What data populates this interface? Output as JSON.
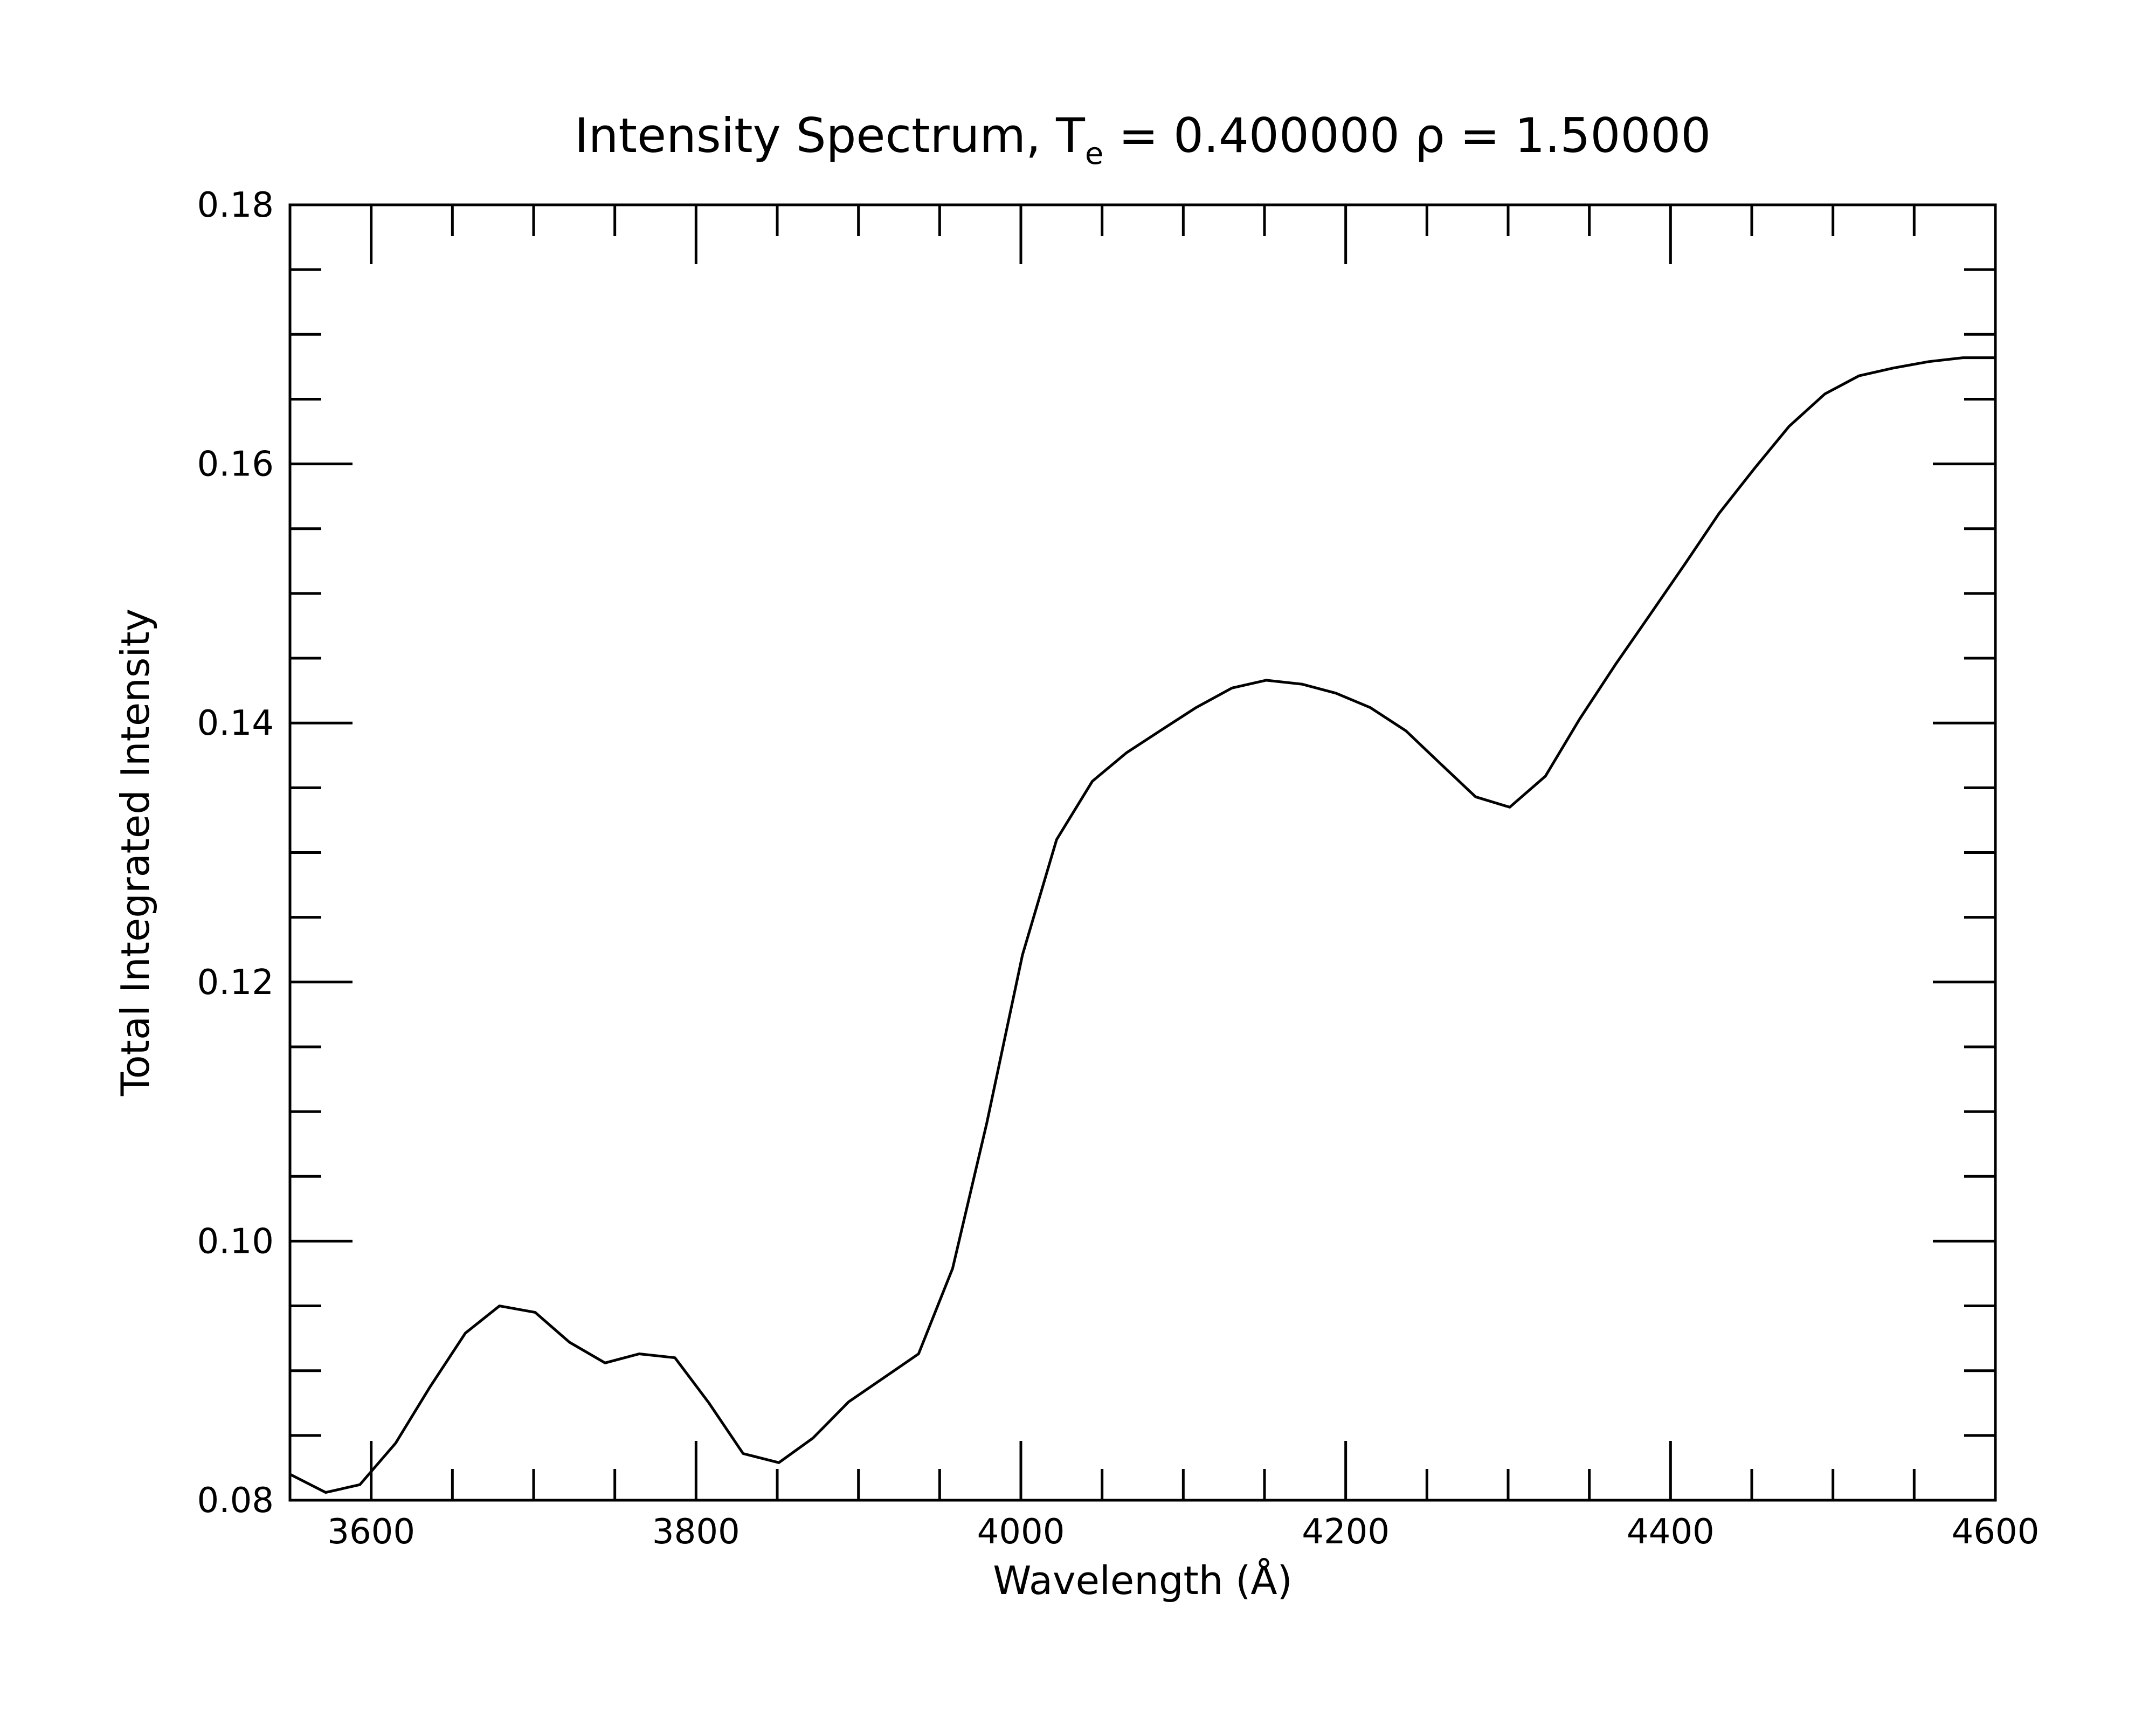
{
  "chart_data": {
    "type": "line",
    "title_main": "Intensity Spectrum, T",
    "title_subscript": "e",
    "title_rest": " = 0.400000 ρ = 1.50000",
    "xlabel": "Wavelength (Å)",
    "ylabel": "Total Integrated Intensity",
    "xlim": [
      3550,
      4600
    ],
    "ylim": [
      0.08,
      0.18
    ],
    "x_ticks": [
      "3600",
      "3800",
      "4000",
      "4200",
      "4400",
      "4600"
    ],
    "y_ticks": [
      "0.08",
      "0.10",
      "0.12",
      "0.14",
      "0.16",
      "0.18"
    ],
    "grid": false,
    "line_color": "#000000",
    "series": [
      {
        "x": [
          3550,
          3572,
          3593,
          3615,
          3636,
          3658,
          3679,
          3701,
          3722,
          3744,
          3765,
          3787,
          3808,
          3829,
          3851,
          3872,
          3894,
          3915,
          3937,
          3958,
          3979,
          4001,
          4022,
          4044,
          4065,
          4087,
          4108,
          4130,
          4151,
          4173,
          4194,
          4215,
          4237,
          4258,
          4280,
          4301,
          4323,
          4344,
          4366,
          4387,
          4409,
          4430,
          4452,
          4473,
          4495,
          4516,
          4537,
          4559,
          4580,
          4600
        ],
        "y": [
          0.082,
          0.0806,
          0.0812,
          0.0844,
          0.0887,
          0.0929,
          0.095,
          0.0945,
          0.0922,
          0.0906,
          0.0913,
          0.091,
          0.0875,
          0.0836,
          0.0829,
          0.0848,
          0.0876,
          0.0894,
          0.0913,
          0.0979,
          0.1091,
          0.1221,
          0.131,
          0.1355,
          0.1377,
          0.1395,
          0.1412,
          0.1427,
          0.1433,
          0.143,
          0.1423,
          0.1412,
          0.1394,
          0.1369,
          0.1343,
          0.1335,
          0.1359,
          0.1403,
          0.1445,
          0.1483,
          0.1523,
          0.1562,
          0.1597,
          0.1629,
          0.1654,
          0.1668,
          0.1674,
          0.1679,
          0.1682,
          0.1682
        ]
      }
    ]
  }
}
